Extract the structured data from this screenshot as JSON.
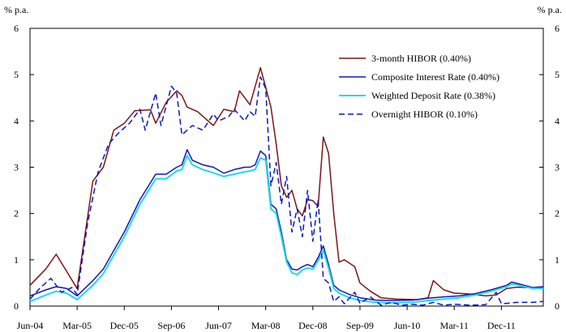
{
  "chart_data": {
    "type": "line",
    "y_unit_left": "% p.a.",
    "y_unit_right": "% p.a.",
    "ylim": [
      0,
      6
    ],
    "y_ticks": [
      0,
      1,
      2,
      3,
      4,
      5,
      6
    ],
    "x_range": [
      "2004-06",
      "2012-08"
    ],
    "x_tick_labels": [
      "Jun-04",
      "Mar-05",
      "Dec-05",
      "Sep-06",
      "Jun-07",
      "Mar-08",
      "Dec-08",
      "Sep-09",
      "Jun-10",
      "Mar-11",
      "Dec-11"
    ],
    "x_tick_dates": [
      "2004-06",
      "2005-03",
      "2005-12",
      "2006-09",
      "2007-06",
      "2008-03",
      "2008-12",
      "2009-09",
      "2010-06",
      "2011-03",
      "2011-12"
    ],
    "grid": false,
    "legend_position": "top-right",
    "series": [
      {
        "name": "3-month HIBOR (0.40%)",
        "color": "#7b1518",
        "dash": "solid",
        "points": [
          [
            "2004-06",
            0.45
          ],
          [
            "2004-09",
            0.8
          ],
          [
            "2004-11",
            1.12
          ],
          [
            "2005-01",
            0.75
          ],
          [
            "2005-03",
            0.38
          ],
          [
            "2005-06",
            2.7
          ],
          [
            "2005-08",
            3.0
          ],
          [
            "2005-10",
            3.8
          ],
          [
            "2005-12",
            3.95
          ],
          [
            "2006-02",
            4.22
          ],
          [
            "2006-05",
            4.24
          ],
          [
            "2006-06",
            3.95
          ],
          [
            "2006-08",
            4.4
          ],
          [
            "2006-10",
            4.65
          ],
          [
            "2006-11",
            4.55
          ],
          [
            "2006-12",
            4.3
          ],
          [
            "2007-02",
            4.2
          ],
          [
            "2007-04",
            4.0
          ],
          [
            "2007-05",
            3.9
          ],
          [
            "2007-07",
            4.25
          ],
          [
            "2007-09",
            4.2
          ],
          [
            "2007-10",
            4.65
          ],
          [
            "2007-12",
            4.35
          ],
          [
            "2008-02",
            5.15
          ],
          [
            "2008-04",
            4.3
          ],
          [
            "2008-05",
            3.5
          ],
          [
            "2008-06",
            2.6
          ],
          [
            "2008-07",
            2.35
          ],
          [
            "2008-08",
            2.5
          ],
          [
            "2008-09",
            2.1
          ],
          [
            "2008-10",
            1.95
          ],
          [
            "2008-11",
            2.3
          ],
          [
            "2008-12",
            2.28
          ],
          [
            "2009-01",
            2.15
          ],
          [
            "2009-02",
            3.65
          ],
          [
            "2009-03",
            3.3
          ],
          [
            "2009-04",
            2.0
          ],
          [
            "2009-05",
            0.95
          ],
          [
            "2009-06",
            1.0
          ],
          [
            "2009-08",
            0.85
          ],
          [
            "2009-09",
            0.5
          ],
          [
            "2009-11",
            0.32
          ],
          [
            "2010-01",
            0.18
          ],
          [
            "2010-04",
            0.15
          ],
          [
            "2010-08",
            0.14
          ],
          [
            "2010-10",
            0.18
          ],
          [
            "2010-11",
            0.55
          ],
          [
            "2011-01",
            0.35
          ],
          [
            "2011-03",
            0.28
          ],
          [
            "2011-05",
            0.27
          ],
          [
            "2011-07",
            0.25
          ],
          [
            "2011-09",
            0.22
          ],
          [
            "2011-11",
            0.24
          ],
          [
            "2012-01",
            0.38
          ],
          [
            "2012-03",
            0.41
          ],
          [
            "2012-05",
            0.4
          ],
          [
            "2012-08",
            0.4
          ]
        ]
      },
      {
        "name": "Composite Interest Rate (0.40%)",
        "color": "#0a1ab8",
        "dash": "solid",
        "points": [
          [
            "2004-06",
            0.22
          ],
          [
            "2004-09",
            0.35
          ],
          [
            "2004-11",
            0.42
          ],
          [
            "2005-01",
            0.38
          ],
          [
            "2005-03",
            0.22
          ],
          [
            "2005-06",
            0.55
          ],
          [
            "2005-08",
            0.8
          ],
          [
            "2005-10",
            1.2
          ],
          [
            "2005-12",
            1.6
          ],
          [
            "2006-03",
            2.3
          ],
          [
            "2006-06",
            2.85
          ],
          [
            "2006-08",
            2.85
          ],
          [
            "2006-10",
            3.0
          ],
          [
            "2006-11",
            3.05
          ],
          [
            "2006-12",
            3.38
          ],
          [
            "2007-01",
            3.15
          ],
          [
            "2007-03",
            3.05
          ],
          [
            "2007-05",
            3.0
          ],
          [
            "2007-07",
            2.87
          ],
          [
            "2007-09",
            2.95
          ],
          [
            "2007-11",
            3.0
          ],
          [
            "2007-12",
            3.0
          ],
          [
            "2008-01",
            3.05
          ],
          [
            "2008-02",
            3.35
          ],
          [
            "2008-03",
            3.25
          ],
          [
            "2008-04",
            2.2
          ],
          [
            "2008-05",
            2.1
          ],
          [
            "2008-06",
            1.6
          ],
          [
            "2008-07",
            1.0
          ],
          [
            "2008-08",
            0.8
          ],
          [
            "2008-09",
            0.78
          ],
          [
            "2008-10",
            0.85
          ],
          [
            "2008-11",
            0.9
          ],
          [
            "2008-12",
            0.85
          ],
          [
            "2009-01",
            1.05
          ],
          [
            "2009-02",
            1.3
          ],
          [
            "2009-03",
            0.9
          ],
          [
            "2009-04",
            0.45
          ],
          [
            "2009-05",
            0.35
          ],
          [
            "2009-07",
            0.25
          ],
          [
            "2009-09",
            0.18
          ],
          [
            "2009-12",
            0.13
          ],
          [
            "2010-03",
            0.12
          ],
          [
            "2010-07",
            0.13
          ],
          [
            "2010-10",
            0.17
          ],
          [
            "2011-01",
            0.2
          ],
          [
            "2011-04",
            0.22
          ],
          [
            "2011-07",
            0.27
          ],
          [
            "2011-10",
            0.35
          ],
          [
            "2012-01",
            0.45
          ],
          [
            "2012-02",
            0.52
          ],
          [
            "2012-04",
            0.46
          ],
          [
            "2012-06",
            0.4
          ],
          [
            "2012-08",
            0.42
          ]
        ]
      },
      {
        "name": "Weighted Deposit Rate (0.38%)",
        "color": "#22d8e8",
        "dash": "solid",
        "points": [
          [
            "2004-06",
            0.1
          ],
          [
            "2004-09",
            0.24
          ],
          [
            "2004-11",
            0.32
          ],
          [
            "2005-01",
            0.28
          ],
          [
            "2005-03",
            0.14
          ],
          [
            "2005-06",
            0.45
          ],
          [
            "2005-08",
            0.7
          ],
          [
            "2005-10",
            1.1
          ],
          [
            "2005-12",
            1.5
          ],
          [
            "2006-03",
            2.2
          ],
          [
            "2006-06",
            2.75
          ],
          [
            "2006-08",
            2.75
          ],
          [
            "2006-10",
            2.92
          ],
          [
            "2006-11",
            2.95
          ],
          [
            "2006-12",
            3.25
          ],
          [
            "2007-01",
            3.05
          ],
          [
            "2007-03",
            2.95
          ],
          [
            "2007-05",
            2.88
          ],
          [
            "2007-07",
            2.8
          ],
          [
            "2007-09",
            2.85
          ],
          [
            "2007-11",
            2.9
          ],
          [
            "2007-12",
            2.92
          ],
          [
            "2008-01",
            2.95
          ],
          [
            "2008-02",
            3.2
          ],
          [
            "2008-03",
            3.15
          ],
          [
            "2008-04",
            2.1
          ],
          [
            "2008-05",
            2.0
          ],
          [
            "2008-06",
            1.5
          ],
          [
            "2008-07",
            0.95
          ],
          [
            "2008-08",
            0.72
          ],
          [
            "2008-09",
            0.68
          ],
          [
            "2008-10",
            0.78
          ],
          [
            "2008-11",
            0.82
          ],
          [
            "2008-12",
            0.8
          ],
          [
            "2009-01",
            0.98
          ],
          [
            "2009-02",
            1.2
          ],
          [
            "2009-03",
            0.82
          ],
          [
            "2009-04",
            0.38
          ],
          [
            "2009-05",
            0.28
          ],
          [
            "2009-07",
            0.18
          ],
          [
            "2009-09",
            0.12
          ],
          [
            "2009-12",
            0.08
          ],
          [
            "2010-03",
            0.07
          ],
          [
            "2010-07",
            0.08
          ],
          [
            "2010-10",
            0.12
          ],
          [
            "2011-01",
            0.15
          ],
          [
            "2011-04",
            0.18
          ],
          [
            "2011-07",
            0.24
          ],
          [
            "2011-10",
            0.32
          ],
          [
            "2012-01",
            0.42
          ],
          [
            "2012-02",
            0.48
          ],
          [
            "2012-04",
            0.43
          ],
          [
            "2012-06",
            0.38
          ],
          [
            "2012-08",
            0.38
          ]
        ]
      },
      {
        "name": "Overnight HIBOR (0.10%)",
        "color": "#0a1ab8",
        "dash": "dashed",
        "points": [
          [
            "2004-06",
            0.15
          ],
          [
            "2004-08",
            0.4
          ],
          [
            "2004-10",
            0.6
          ],
          [
            "2004-12",
            0.3
          ],
          [
            "2005-02",
            0.4
          ],
          [
            "2005-03",
            0.25
          ],
          [
            "2005-05",
            1.8
          ],
          [
            "2005-07",
            2.9
          ],
          [
            "2005-09",
            3.5
          ],
          [
            "2005-11",
            3.75
          ],
          [
            "2006-01",
            3.95
          ],
          [
            "2006-03",
            4.25
          ],
          [
            "2006-04",
            3.8
          ],
          [
            "2006-06",
            4.6
          ],
          [
            "2006-07",
            3.9
          ],
          [
            "2006-09",
            4.75
          ],
          [
            "2006-10",
            4.6
          ],
          [
            "2006-11",
            3.7
          ],
          [
            "2007-01",
            3.9
          ],
          [
            "2007-03",
            3.8
          ],
          [
            "2007-05",
            4.15
          ],
          [
            "2007-06",
            4.0
          ],
          [
            "2007-08",
            4.1
          ],
          [
            "2007-09",
            4.25
          ],
          [
            "2007-11",
            4.0
          ],
          [
            "2007-12",
            4.2
          ],
          [
            "2008-01",
            4.1
          ],
          [
            "2008-02",
            4.95
          ],
          [
            "2008-03",
            4.7
          ],
          [
            "2008-04",
            2.6
          ],
          [
            "2008-05",
            3.1
          ],
          [
            "2008-06",
            2.2
          ],
          [
            "2008-07",
            2.8
          ],
          [
            "2008-08",
            1.6
          ],
          [
            "2008-09",
            2.1
          ],
          [
            "2008-10",
            1.5
          ],
          [
            "2008-11",
            2.5
          ],
          [
            "2008-12",
            1.4
          ],
          [
            "2009-01",
            2.3
          ],
          [
            "2009-02",
            0.6
          ],
          [
            "2009-03",
            0.5
          ],
          [
            "2009-04",
            0.1
          ],
          [
            "2009-05",
            0.2
          ],
          [
            "2009-06",
            0.05
          ],
          [
            "2009-08",
            0.3
          ],
          [
            "2009-09",
            0.06
          ],
          [
            "2009-11",
            0.2
          ],
          [
            "2010-01",
            0.02
          ],
          [
            "2010-03",
            0.08
          ],
          [
            "2010-05",
            0.02
          ],
          [
            "2010-07",
            0.04
          ],
          [
            "2010-09",
            0.02
          ],
          [
            "2010-11",
            0.08
          ],
          [
            "2011-01",
            0.02
          ],
          [
            "2011-03",
            0.04
          ],
          [
            "2011-06",
            0.02
          ],
          [
            "2011-09",
            0.03
          ],
          [
            "2011-11",
            0.3
          ],
          [
            "2011-12",
            0.05
          ],
          [
            "2012-01",
            0.06
          ],
          [
            "2012-03",
            0.08
          ],
          [
            "2012-06",
            0.08
          ],
          [
            "2012-08",
            0.1
          ]
        ]
      }
    ]
  }
}
